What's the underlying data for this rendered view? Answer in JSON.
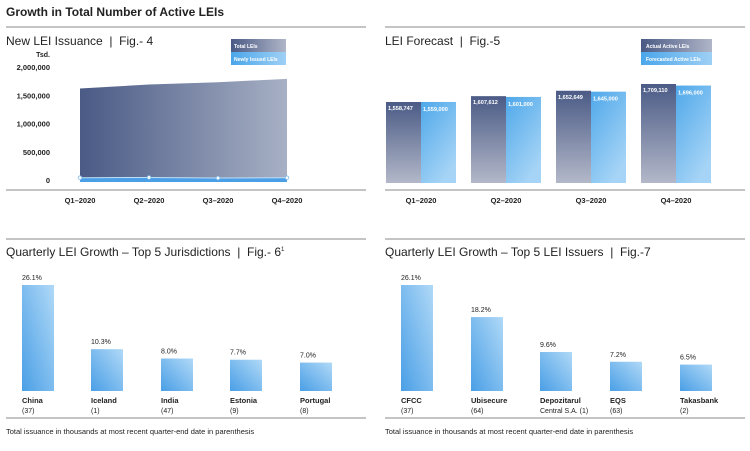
{
  "page_title": "Growth in Total Number of Active LEIs",
  "colors": {
    "dark": "#4a5a85",
    "light": "#5aaee8",
    "rule": "#888888"
  },
  "chart_data": [
    {
      "type": "area",
      "title": "New LEI Issuance  |  Fig.- 4",
      "ylabel": "Tsd.",
      "categories": [
        "Q1–2020",
        "Q2–2020",
        "Q3–2020",
        "Q4–2020"
      ],
      "yticks": [
        "2,000,000",
        "1,500,000",
        "1,000,000",
        "500,000",
        "0"
      ],
      "ylim": [
        0,
        2000000
      ],
      "legend": "top-right",
      "series": [
        {
          "name": "Total LEIs",
          "values": [
            1620000,
            1690000,
            1730000,
            1790000
          ]
        },
        {
          "name": "Newly Issued LEIs",
          "values": [
            40000,
            45000,
            35000,
            40000
          ]
        }
      ]
    },
    {
      "type": "bar",
      "title": "LEI Forecast  |  Fig.-5",
      "categories": [
        "Q1–2020",
        "Q2–2020",
        "Q3–2020",
        "Q4–2020"
      ],
      "legend": "top-right",
      "series": [
        {
          "name": "Actual Active LEIs",
          "values": [
            1558747,
            1607612,
            1652649,
            1709110
          ],
          "labels": [
            "1,558,747",
            "1,607,612",
            "1,652,649",
            "1,709,110"
          ]
        },
        {
          "name": "Forecasted Active LEIs",
          "values": [
            1559000,
            1601000,
            1645000,
            1696000
          ],
          "labels": [
            "1,559,000",
            "1,601,000",
            "1,645,000",
            "1,696,000"
          ]
        }
      ]
    },
    {
      "type": "bar",
      "title": "Quarterly LEI Growth – Top 5 Jurisdictions  |  Fig.- 6",
      "title_sup": "1",
      "categories": [
        "China",
        "Iceland",
        "India",
        "Estonia",
        "Portugal"
      ],
      "sublabels": [
        "(37)",
        "(1)",
        "(47)",
        "(9)",
        "(8)"
      ],
      "values": [
        26.1,
        10.3,
        8.0,
        7.7,
        7.0
      ],
      "labels": [
        "26.1%",
        "10.3%",
        "8.0%",
        "7.7%",
        "7.0%"
      ],
      "note": "Total issuance in thousands at most recent quarter-end date in parenthesis"
    },
    {
      "type": "bar",
      "title": "Quarterly LEI Growth – Top 5 LEI Issuers  |  Fig.-7",
      "categories": [
        "CFCC",
        "Ubisecure",
        "Depozitarul",
        "EQS",
        "Takasbank"
      ],
      "sublabels": [
        "(37)",
        "(64)",
        "Central S.A. (1)",
        "(63)",
        "(2)"
      ],
      "values": [
        26.1,
        18.2,
        9.6,
        7.2,
        6.5
      ],
      "labels": [
        "26.1%",
        "18.2%",
        "9.6%",
        "7.2%",
        "6.5%"
      ],
      "note": "Total issuance in thousands at most recent quarter-end date in parenthesis"
    }
  ]
}
